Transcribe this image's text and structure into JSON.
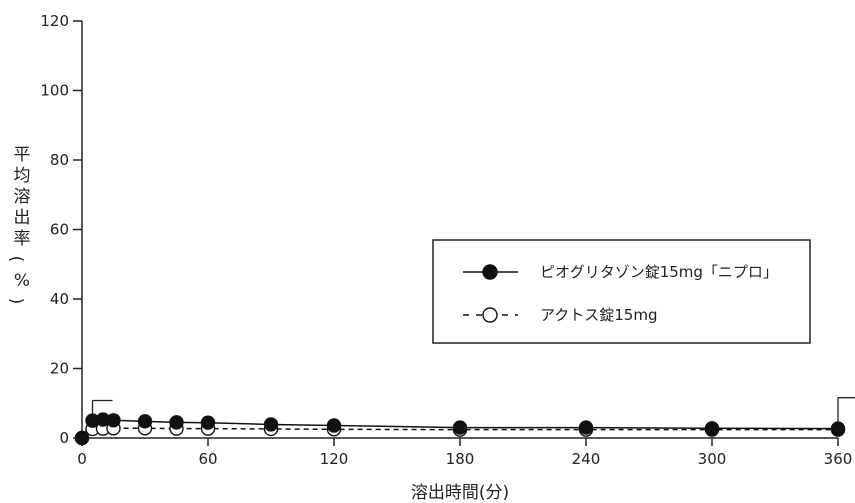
{
  "chart_data": {
    "type": "line",
    "xlabel": "溶出時間(分)",
    "ylabel": "平均溶出率(%)",
    "xlim": [
      0,
      360
    ],
    "ylim": [
      0,
      120
    ],
    "xticks": [
      0,
      60,
      120,
      180,
      240,
      300,
      360
    ],
    "yticks": [
      0,
      20,
      40,
      60,
      80,
      100,
      120
    ],
    "x": [
      0,
      5,
      10,
      15,
      30,
      45,
      60,
      90,
      120,
      180,
      240,
      300,
      360
    ],
    "series": [
      {
        "name": "ピオグリタゾン錠15mg「ニプロ」",
        "marker": "filled-circle",
        "line": "solid",
        "color": "#111111",
        "values": [
          0,
          5.0,
          5.3,
          5.1,
          4.8,
          4.5,
          4.4,
          3.9,
          3.6,
          3.0,
          3.0,
          2.8,
          2.7
        ],
        "error_bar_upper": {
          "5": 10.8,
          "360": 11.6
        }
      },
      {
        "name": "アクトス錠15mg",
        "marker": "open-circle",
        "line": "dashed",
        "color": "#111111",
        "values": [
          0,
          2.6,
          2.7,
          2.8,
          2.8,
          2.7,
          2.7,
          2.6,
          2.5,
          2.4,
          2.4,
          2.4,
          2.4
        ]
      }
    ],
    "grid": false,
    "legend_position": "right-middle"
  }
}
